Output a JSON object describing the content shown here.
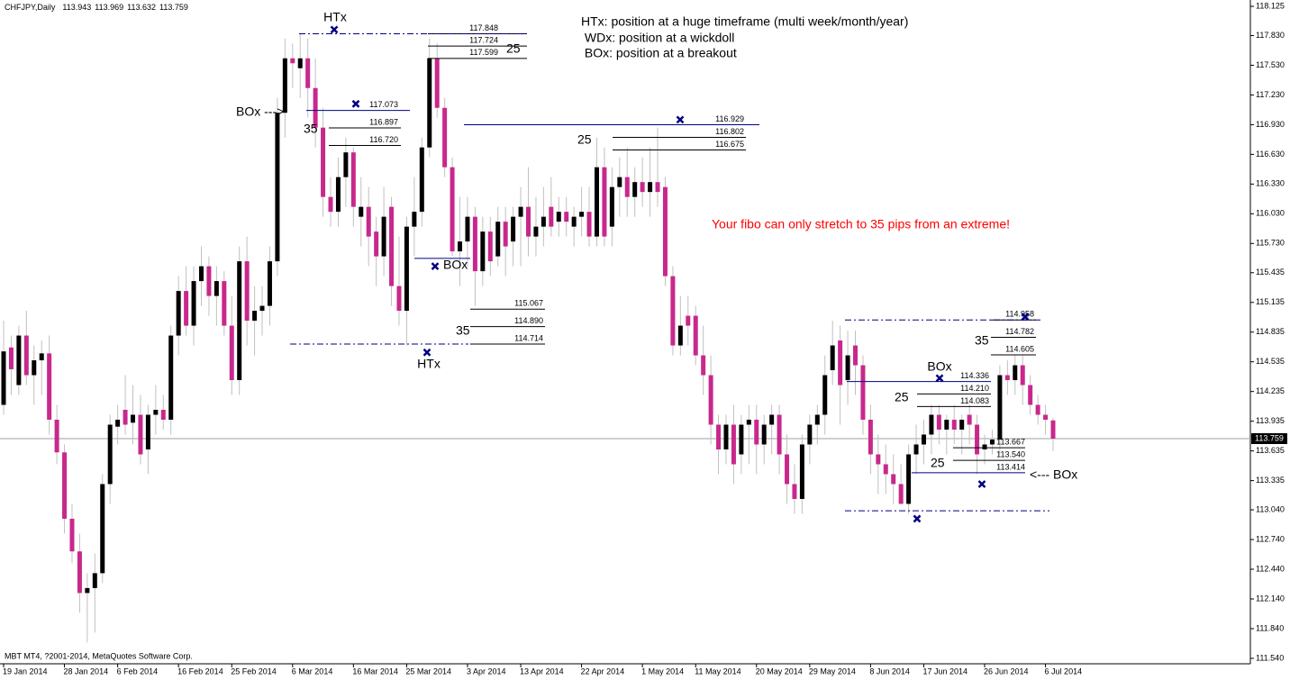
{
  "chart_data": {
    "type": "candlestick",
    "title": "CHFJPY,Daily",
    "footer": "MBT MT4, ?2001-2014, MetaQuotes Software Corp.",
    "notes": [
      "HTx: position at a huge timeframe (multi week/month/year)",
      " WDx: position at a wickdoll",
      " BOx: position at a breakout"
    ],
    "warning": "Your fibo can only stretch to 35 pips from an extreme!",
    "annotations": [
      "HTx",
      "HTx",
      "BOx --->",
      "BOx",
      "BOx",
      "<--- BOx"
    ],
    "bull_color": "#000000",
    "bear_color": "#c8288c",
    "wick_color": "#c0c0c0",
    "mark_color": "#000080",
    "ylim": [
      111.485,
      118.189
    ],
    "yticks": [
      118.125,
      {
        "value": 117.83,
        "label": "117.830"
      },
      {
        "value": 117.53,
        "label": "117.530"
      },
      {
        "value": 117.23,
        "label": "117.230"
      },
      {
        "value": 116.93,
        "label": "116.930"
      },
      {
        "value": 116.63,
        "label": "116.630"
      },
      {
        "value": 116.33,
        "label": "116.330"
      },
      {
        "value": 116.03,
        "label": "116.030"
      },
      {
        "value": 115.73,
        "label": "115.730"
      },
      115.435,
      115.135,
      114.835,
      114.535,
      114.235,
      113.935,
      113.635,
      113.335,
      {
        "value": 113.04,
        "label": "113.040"
      },
      {
        "value": 112.74,
        "label": "112.740"
      },
      {
        "value": 112.44,
        "label": "112.440"
      },
      {
        "value": 112.14,
        "label": "112.140"
      },
      {
        "value": 111.84,
        "label": "111.840"
      },
      {
        "value": 111.54,
        "label": "111.540"
      }
    ],
    "categories": [
      "19 Jan 2014",
      null,
      null,
      null,
      null,
      null,
      null,
      null,
      "28 Jan 2014",
      null,
      null,
      null,
      null,
      null,
      null,
      "6 Feb 2014",
      null,
      null,
      null,
      null,
      null,
      null,
      null,
      "16 Feb 2014",
      null,
      null,
      null,
      null,
      null,
      null,
      "25 Feb 2014",
      null,
      null,
      null,
      null,
      null,
      null,
      null,
      "6 Mar 2014",
      null,
      null,
      null,
      null,
      null,
      null,
      null,
      "16 Mar 2014",
      null,
      null,
      null,
      null,
      null,
      null,
      "25 Mar 2014",
      null,
      null,
      null,
      null,
      null,
      null,
      null,
      "3 Apr 2014",
      null,
      null,
      null,
      null,
      null,
      null,
      "13 Apr 2014",
      null,
      null,
      null,
      null,
      null,
      null,
      null,
      "22 Apr 2014",
      null,
      null,
      null,
      null,
      null,
      null,
      null,
      "1 May 2014",
      null,
      null,
      null,
      null,
      null,
      null,
      "11 May 2014",
      null,
      null,
      null,
      null,
      null,
      null,
      null,
      "20 May 2014",
      null,
      null,
      null,
      null,
      null,
      null,
      "29 May 2014",
      null,
      null,
      null,
      null,
      null,
      null,
      null,
      "8 Jun 2014",
      null,
      null,
      null,
      null,
      null,
      null,
      "17 Jun 2014",
      null,
      null,
      null,
      null,
      null,
      null,
      null,
      "26 Jun 2014",
      null,
      null,
      null,
      null,
      null,
      null,
      null,
      "6 Jul 2014",
      null
    ],
    "open": [
      114.1,
      114.68,
      114.3,
      114.8,
      114.4,
      114.55,
      114.62,
      113.95,
      113.62,
      112.95,
      112.62,
      112.2,
      112.25,
      112.4,
      113.3,
      113.88,
      114.05,
      113.92,
      114.0,
      113.65,
      114.0,
      114.05,
      113.95,
      114.8,
      115.25,
      114.9,
      115.35,
      115.5,
      115.2,
      115.35,
      114.9,
      114.35,
      115.55,
      114.95,
      115.05,
      115.1,
      115.55,
      117.05,
      117.6,
      117.5,
      117.6,
      117.3,
      116.9,
      116.2,
      116.05,
      116.4,
      116.65,
      116.0,
      116.1,
      115.85,
      115.6,
      116.1,
      115.3,
      115.05,
      115.9,
      116.05,
      116.7,
      117.6,
      117.1,
      116.5,
      115.65,
      115.75,
      116.0,
      115.45,
      115.85,
      115.6,
      115.95,
      115.75,
      116.0,
      116.1,
      115.8,
      115.9,
      116.1,
      115.95,
      116.05,
      115.9,
      116.0,
      116.05,
      115.8,
      116.5,
      115.9,
      116.3,
      116.4,
      116.2,
      116.35,
      116.25,
      116.35,
      116.3,
      115.4,
      114.7,
      115.0,
      115.0,
      114.6,
      114.4,
      113.9,
      113.65,
      113.9,
      113.6,
      113.9,
      113.95,
      113.7,
      113.9,
      114.0,
      113.6,
      113.3,
      113.15,
      113.7,
      113.9,
      114.0,
      114.45,
      114.75,
      114.35,
      114.7,
      114.5,
      113.95,
      113.6,
      113.5,
      113.4,
      113.3,
      113.1,
      113.6,
      113.7,
      113.8,
      114.0,
      113.85,
      113.95,
      113.85,
      114.0,
      113.9,
      113.65,
      113.7,
      113.75,
      114.4,
      114.35,
      114.5,
      114.3,
      114.1,
      114.0,
      113.943
    ],
    "high": [
      114.95,
      114.8,
      114.9,
      115.05,
      114.7,
      114.75,
      114.8,
      114.1,
      113.7,
      113.1,
      112.8,
      112.4,
      112.6,
      113.4,
      114.0,
      114.1,
      114.4,
      114.3,
      114.2,
      114.1,
      114.3,
      114.2,
      114.9,
      115.4,
      115.5,
      115.5,
      115.7,
      115.6,
      115.5,
      115.45,
      115.2,
      115.7,
      115.8,
      115.3,
      115.3,
      115.7,
      117.2,
      117.8,
      117.75,
      117.85,
      117.8,
      117.6,
      117.1,
      116.4,
      116.6,
      116.8,
      116.7,
      116.4,
      116.3,
      116.0,
      116.3,
      116.2,
      115.8,
      116.0,
      116.4,
      116.8,
      117.8,
      117.75,
      117.2,
      116.6,
      116.2,
      116.2,
      116.1,
      116.0,
      116.0,
      116.1,
      116.1,
      116.1,
      116.3,
      116.5,
      116.2,
      116.3,
      116.4,
      116.2,
      116.2,
      116.1,
      116.3,
      116.3,
      116.8,
      116.7,
      116.5,
      116.6,
      116.7,
      116.5,
      116.6,
      116.7,
      116.9,
      116.4,
      115.5,
      115.2,
      115.2,
      115.1,
      114.9,
      114.6,
      114.0,
      114.0,
      114.1,
      114.0,
      114.1,
      114.1,
      114.0,
      114.1,
      114.1,
      113.8,
      113.5,
      113.8,
      114.0,
      114.1,
      114.6,
      114.95,
      114.9,
      114.85,
      114.85,
      114.6,
      114.1,
      113.8,
      113.7,
      113.6,
      113.5,
      113.7,
      113.9,
      113.95,
      114.1,
      114.1,
      114.0,
      114.1,
      114.0,
      114.1,
      114.0,
      113.8,
      113.85,
      114.5,
      114.55,
      114.6,
      114.6,
      114.4,
      114.2,
      114.1,
      113.969
    ],
    "low": [
      114.0,
      114.2,
      114.2,
      114.3,
      114.1,
      114.2,
      113.8,
      113.5,
      112.8,
      112.5,
      112.0,
      111.7,
      111.8,
      112.3,
      113.1,
      113.7,
      113.8,
      113.7,
      113.5,
      113.4,
      113.8,
      113.85,
      113.8,
      114.6,
      114.8,
      114.7,
      115.1,
      115.0,
      114.9,
      114.8,
      114.2,
      114.2,
      114.7,
      114.6,
      114.8,
      114.9,
      115.4,
      116.8,
      117.3,
      117.2,
      117.0,
      116.7,
      116.0,
      115.9,
      115.9,
      116.1,
      115.9,
      115.7,
      115.5,
      115.3,
      115.4,
      115.1,
      114.9,
      114.7,
      115.6,
      115.9,
      116.6,
      117.0,
      116.4,
      115.6,
      115.3,
      115.5,
      115.1,
      115.3,
      115.4,
      115.5,
      115.4,
      115.5,
      115.5,
      115.6,
      115.6,
      115.7,
      115.8,
      115.8,
      115.8,
      115.7,
      115.8,
      115.7,
      115.7,
      115.7,
      115.7,
      116.0,
      116.0,
      116.0,
      116.1,
      116.0,
      116.1,
      115.3,
      114.6,
      114.6,
      114.7,
      114.5,
      114.2,
      113.7,
      113.4,
      113.5,
      113.3,
      113.4,
      113.5,
      113.4,
      113.5,
      113.6,
      113.4,
      113.1,
      113.0,
      113.0,
      113.5,
      113.7,
      113.8,
      114.3,
      113.9,
      114.1,
      114.2,
      113.8,
      113.4,
      113.2,
      113.2,
      113.1,
      113.1,
      113.0,
      113.4,
      113.5,
      113.6,
      113.7,
      113.6,
      113.7,
      113.6,
      113.7,
      113.4,
      113.5,
      113.6,
      113.6,
      114.2,
      114.2,
      114.1,
      114.0,
      113.9,
      113.8,
      113.632
    ],
    "close": [
      114.64,
      114.46,
      114.8,
      114.4,
      114.55,
      114.62,
      113.95,
      113.62,
      112.95,
      112.62,
      112.2,
      112.25,
      112.4,
      113.3,
      113.9,
      113.95,
      113.9,
      114.0,
      113.6,
      114.0,
      114.05,
      113.95,
      114.8,
      115.25,
      114.9,
      115.35,
      115.5,
      115.2,
      115.35,
      114.9,
      114.35,
      115.55,
      114.95,
      115.05,
      115.1,
      115.55,
      117.05,
      117.6,
      117.55,
      117.6,
      117.3,
      116.9,
      116.2,
      116.05,
      116.4,
      116.65,
      116.1,
      116.1,
      115.8,
      115.6,
      116.0,
      115.3,
      115.05,
      115.9,
      116.05,
      116.7,
      117.6,
      117.1,
      116.5,
      115.65,
      115.75,
      116.0,
      115.45,
      115.85,
      115.55,
      115.95,
      115.7,
      116.0,
      116.1,
      115.8,
      115.9,
      116.0,
      115.9,
      116.05,
      115.95,
      116.0,
      116.05,
      115.8,
      116.5,
      115.8,
      116.3,
      116.4,
      116.2,
      116.35,
      116.25,
      116.35,
      116.25,
      115.4,
      114.7,
      114.9,
      114.9,
      114.6,
      114.4,
      113.9,
      113.65,
      113.9,
      113.5,
      113.9,
      113.95,
      113.7,
      113.9,
      114.0,
      113.6,
      113.3,
      113.15,
      113.7,
      113.9,
      114.0,
      114.4,
      114.7,
      114.3,
      114.6,
      114.5,
      113.95,
      113.6,
      113.5,
      113.4,
      113.3,
      113.1,
      113.6,
      113.7,
      113.8,
      114.0,
      113.85,
      113.95,
      113.85,
      113.95,
      113.9,
      113.6,
      113.7,
      113.75,
      114.4,
      114.35,
      114.5,
      114.3,
      114.1,
      114.0,
      113.95,
      113.759
    ],
    "fibs": [
      {
        "label": "25",
        "levels": [
          117.848,
          117.724,
          117.599
        ]
      },
      {
        "label": "35",
        "levels": [
          117.073,
          116.897,
          {
            "value": 116.72,
            "label": "116.720"
          }
        ]
      },
      {
        "label": "25",
        "levels": [
          116.929,
          116.802,
          116.675
        ]
      },
      {
        "label": "35",
        "levels": [
          115.067,
          {
            "value": 114.89,
            "label": "114.890"
          },
          114.714
        ]
      },
      {
        "label": "35",
        "levels": [
          114.958,
          114.782,
          114.605
        ]
      },
      {
        "label": "25",
        "levels": [
          114.336,
          {
            "value": 114.21,
            "label": "114.210"
          },
          114.083
        ]
      },
      {
        "label": "25",
        "levels": [
          113.667,
          {
            "value": 113.54,
            "label": "113.540"
          },
          113.414
        ]
      }
    ],
    "extremes": [
      113.03
    ],
    "breakout_lines": [
      115.58
    ],
    "markers": [
      117.89,
      117.14,
      115.5,
      114.63,
      116.98,
      114.99,
      114.37,
      112.95,
      113.3
    ]
  }
}
